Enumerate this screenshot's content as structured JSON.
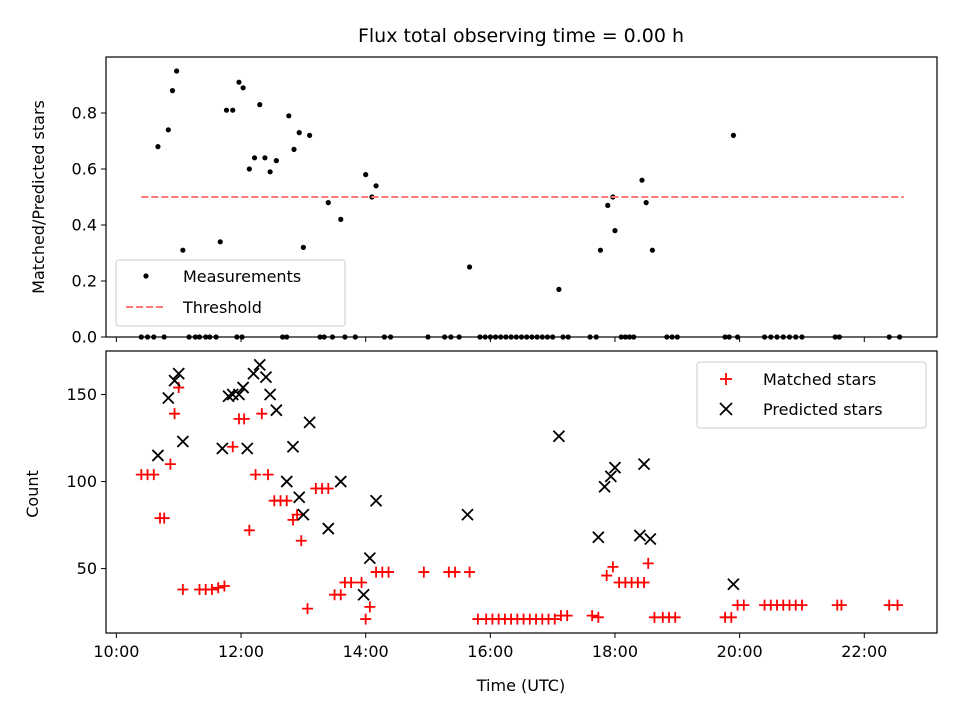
{
  "chart_data": [
    {
      "type": "scatter",
      "title": "Flux total observing time = 0.00 h",
      "xlabel": "",
      "ylabel": "Matched/Predicted stars",
      "xlim": [
        "09:50",
        "23:10"
      ],
      "ylim": [
        0,
        1.0
      ],
      "y_ticks": [
        "0.0",
        "0.2",
        "0.4",
        "0.6",
        "0.8"
      ],
      "y_tick_values": [
        0,
        0.2,
        0.4,
        0.6,
        0.8
      ],
      "legend_position": "lower-left",
      "grid": false,
      "series": [
        {
          "name": "Measurements",
          "style": "dot",
          "color": "#000000",
          "points": [
            [
              "10:40",
              0.68
            ],
            [
              "10:50",
              0.74
            ],
            [
              "10:54",
              0.88
            ],
            [
              "10:58",
              0.95
            ],
            [
              "11:04",
              0.31
            ],
            [
              "11:40",
              0.34
            ],
            [
              "11:46",
              0.81
            ],
            [
              "11:52",
              0.81
            ],
            [
              "11:58",
              0.91
            ],
            [
              "12:02",
              0.89
            ],
            [
              "12:08",
              0.6
            ],
            [
              "12:13",
              0.64
            ],
            [
              "12:18",
              0.83
            ],
            [
              "12:23",
              0.64
            ],
            [
              "12:28",
              0.59
            ],
            [
              "12:34",
              0.63
            ],
            [
              "12:46",
              0.79
            ],
            [
              "12:51",
              0.67
            ],
            [
              "12:56",
              0.73
            ],
            [
              "13:00",
              0.32
            ],
            [
              "13:06",
              0.72
            ],
            [
              "13:24",
              0.48
            ],
            [
              "13:36",
              0.42
            ],
            [
              "14:00",
              0.58
            ],
            [
              "14:06",
              0.5
            ],
            [
              "14:10",
              0.54
            ],
            [
              "15:40",
              0.25
            ],
            [
              "17:06",
              0.17
            ],
            [
              "17:46",
              0.31
            ],
            [
              "17:53",
              0.47
            ],
            [
              "17:58",
              0.5
            ],
            [
              "18:00",
              0.38
            ],
            [
              "18:26",
              0.56
            ],
            [
              "18:30",
              0.48
            ],
            [
              "18:36",
              0.31
            ],
            [
              "19:54",
              0.72
            ],
            [
              "10:24",
              0
            ],
            [
              "10:30",
              0
            ],
            [
              "10:36",
              0
            ],
            [
              "10:46",
              0
            ],
            [
              "11:10",
              0
            ],
            [
              "11:16",
              0
            ],
            [
              "11:20",
              0
            ],
            [
              "11:26",
              0
            ],
            [
              "11:30",
              0
            ],
            [
              "11:36",
              0
            ],
            [
              "11:56",
              0
            ],
            [
              "12:01",
              0
            ],
            [
              "12:40",
              0
            ],
            [
              "12:44",
              0
            ],
            [
              "13:16",
              0
            ],
            [
              "13:20",
              0
            ],
            [
              "13:28",
              0
            ],
            [
              "13:40",
              0
            ],
            [
              "13:50",
              0
            ],
            [
              "14:18",
              0
            ],
            [
              "14:24",
              0
            ],
            [
              "15:00",
              0
            ],
            [
              "15:16",
              0
            ],
            [
              "15:22",
              0
            ],
            [
              "15:30",
              0
            ],
            [
              "15:50",
              0
            ],
            [
              "15:55",
              0
            ],
            [
              "16:00",
              0
            ],
            [
              "16:05",
              0
            ],
            [
              "16:10",
              0
            ],
            [
              "16:15",
              0
            ],
            [
              "16:20",
              0
            ],
            [
              "16:25",
              0
            ],
            [
              "16:30",
              0
            ],
            [
              "16:35",
              0
            ],
            [
              "16:40",
              0
            ],
            [
              "16:45",
              0
            ],
            [
              "16:50",
              0
            ],
            [
              "16:55",
              0
            ],
            [
              "17:00",
              0
            ],
            [
              "17:10",
              0
            ],
            [
              "17:15",
              0
            ],
            [
              "17:36",
              0
            ],
            [
              "17:42",
              0
            ],
            [
              "18:06",
              0
            ],
            [
              "18:10",
              0
            ],
            [
              "18:14",
              0
            ],
            [
              "18:18",
              0
            ],
            [
              "18:50",
              0
            ],
            [
              "18:55",
              0
            ],
            [
              "19:00",
              0
            ],
            [
              "19:46",
              0
            ],
            [
              "19:50",
              0
            ],
            [
              "19:58",
              0
            ],
            [
              "20:24",
              0
            ],
            [
              "20:30",
              0
            ],
            [
              "20:36",
              0
            ],
            [
              "20:42",
              0
            ],
            [
              "20:48",
              0
            ],
            [
              "20:54",
              0
            ],
            [
              "21:00",
              0
            ],
            [
              "21:32",
              0
            ],
            [
              "21:36",
              0
            ],
            [
              "22:24",
              0
            ],
            [
              "22:34",
              0
            ]
          ]
        },
        {
          "name": "Threshold",
          "style": "dashed-line",
          "color": "#ff7777",
          "points": [
            [
              "10:24",
              0.5
            ],
            [
              "22:38",
              0.5
            ]
          ]
        }
      ]
    },
    {
      "type": "scatter",
      "title": "",
      "xlabel": "Time (UTC)",
      "ylabel": "Count",
      "xlim": [
        "09:50",
        "23:10"
      ],
      "ylim": [
        13,
        175
      ],
      "y_ticks": [
        "50",
        "100",
        "150"
      ],
      "y_tick_values": [
        50,
        100,
        150
      ],
      "x_ticks": [
        "10:00",
        "12:00",
        "14:00",
        "16:00",
        "18:00",
        "20:00",
        "22:00"
      ],
      "legend_position": "upper-right",
      "grid": false,
      "series": [
        {
          "name": "Matched stars",
          "style": "plus",
          "color": "#ff0000",
          "points": [
            [
              "10:24",
              104
            ],
            [
              "10:30",
              104
            ],
            [
              "10:36",
              104
            ],
            [
              "10:42",
              79
            ],
            [
              "10:46",
              79
            ],
            [
              "10:52",
              110
            ],
            [
              "10:56",
              139
            ],
            [
              "11:00",
              154
            ],
            [
              "11:04",
              38
            ],
            [
              "11:20",
              38
            ],
            [
              "11:26",
              38
            ],
            [
              "11:32",
              38
            ],
            [
              "11:38",
              39
            ],
            [
              "11:44",
              40
            ],
            [
              "11:52",
              120
            ],
            [
              "11:58",
              136
            ],
            [
              "12:03",
              136
            ],
            [
              "12:08",
              72
            ],
            [
              "12:14",
              104
            ],
            [
              "12:20",
              139
            ],
            [
              "12:26",
              104
            ],
            [
              "12:32",
              89
            ],
            [
              "12:38",
              89
            ],
            [
              "12:44",
              89
            ],
            [
              "12:50",
              78
            ],
            [
              "12:54",
              81
            ],
            [
              "12:58",
              66
            ],
            [
              "13:04",
              27
            ],
            [
              "13:12",
              96
            ],
            [
              "13:18",
              96
            ],
            [
              "13:24",
              96
            ],
            [
              "13:30",
              35
            ],
            [
              "13:36",
              35
            ],
            [
              "13:40",
              42
            ],
            [
              "13:46",
              42
            ],
            [
              "13:56",
              42
            ],
            [
              "14:00",
              21
            ],
            [
              "14:04",
              28
            ],
            [
              "14:10",
              48
            ],
            [
              "14:16",
              48
            ],
            [
              "14:22",
              48
            ],
            [
              "14:56",
              48
            ],
            [
              "15:20",
              48
            ],
            [
              "15:26",
              48
            ],
            [
              "15:40",
              48
            ],
            [
              "15:48",
              21
            ],
            [
              "15:56",
              21
            ],
            [
              "16:02",
              21
            ],
            [
              "16:08",
              21
            ],
            [
              "16:14",
              21
            ],
            [
              "16:20",
              21
            ],
            [
              "16:26",
              21
            ],
            [
              "16:32",
              21
            ],
            [
              "16:38",
              21
            ],
            [
              "16:44",
              21
            ],
            [
              "16:50",
              21
            ],
            [
              "16:56",
              21
            ],
            [
              "17:02",
              21
            ],
            [
              "17:08",
              23
            ],
            [
              "17:14",
              23
            ],
            [
              "17:38",
              23
            ],
            [
              "17:44",
              22
            ],
            [
              "17:52",
              46
            ],
            [
              "17:58",
              51
            ],
            [
              "18:04",
              42
            ],
            [
              "18:10",
              42
            ],
            [
              "18:16",
              42
            ],
            [
              "18:22",
              42
            ],
            [
              "18:28",
              42
            ],
            [
              "18:32",
              53
            ],
            [
              "18:38",
              22
            ],
            [
              "18:46",
              22
            ],
            [
              "18:52",
              22
            ],
            [
              "18:58",
              22
            ],
            [
              "19:46",
              22
            ],
            [
              "19:52",
              22
            ],
            [
              "19:58",
              29
            ],
            [
              "20:04",
              29
            ],
            [
              "20:24",
              29
            ],
            [
              "20:30",
              29
            ],
            [
              "20:36",
              29
            ],
            [
              "20:42",
              29
            ],
            [
              "20:48",
              29
            ],
            [
              "20:54",
              29
            ],
            [
              "21:00",
              29
            ],
            [
              "21:34",
              29
            ],
            [
              "21:38",
              29
            ],
            [
              "22:24",
              29
            ],
            [
              "22:32",
              29
            ]
          ]
        },
        {
          "name": "Predicted stars",
          "style": "x",
          "color": "#000000",
          "points": [
            [
              "10:40",
              115
            ],
            [
              "10:50",
              148
            ],
            [
              "10:56",
              158
            ],
            [
              "11:00",
              162
            ],
            [
              "11:04",
              123
            ],
            [
              "11:42",
              119
            ],
            [
              "11:48",
              149
            ],
            [
              "11:52",
              150
            ],
            [
              "11:58",
              150
            ],
            [
              "12:02",
              154
            ],
            [
              "12:06",
              119
            ],
            [
              "12:12",
              162
            ],
            [
              "12:18",
              167
            ],
            [
              "12:24",
              160
            ],
            [
              "12:28",
              150
            ],
            [
              "12:34",
              141
            ],
            [
              "12:44",
              100
            ],
            [
              "12:50",
              120
            ],
            [
              "12:56",
              91
            ],
            [
              "13:00",
              81
            ],
            [
              "13:06",
              134
            ],
            [
              "13:24",
              73
            ],
            [
              "13:36",
              100
            ],
            [
              "13:58",
              35
            ],
            [
              "14:04",
              56
            ],
            [
              "14:10",
              89
            ],
            [
              "15:38",
              81
            ],
            [
              "17:06",
              126
            ],
            [
              "17:44",
              68
            ],
            [
              "17:50",
              97
            ],
            [
              "17:56",
              103
            ],
            [
              "18:00",
              108
            ],
            [
              "18:24",
              69
            ],
            [
              "18:28",
              110
            ],
            [
              "18:34",
              67
            ],
            [
              "19:54",
              41
            ]
          ]
        }
      ]
    }
  ]
}
